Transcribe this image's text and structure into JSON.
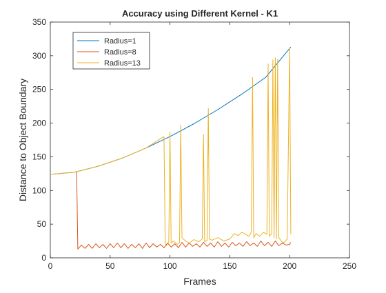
{
  "chart_data": {
    "type": "line",
    "title": "Accuracy using Different Kernel - K1",
    "xlabel": "Frames",
    "ylabel": "Distance to Object Boundary",
    "xlim": [
      0,
      250
    ],
    "ylim": [
      0,
      350
    ],
    "xticks": [
      0,
      50,
      100,
      150,
      200,
      250
    ],
    "yticks": [
      0,
      50,
      100,
      150,
      200,
      250,
      300,
      350
    ],
    "grid": false,
    "legend_position": "top-left",
    "series": [
      {
        "name": "Radius=1",
        "color": "#0072BD",
        "x": [
          1,
          20,
          40,
          60,
          80,
          100,
          120,
          140,
          160,
          180,
          201
        ],
        "y": [
          124,
          127,
          136,
          148,
          163,
          180,
          199,
          220,
          243,
          268,
          313
        ]
      },
      {
        "name": "Radius=8",
        "color": "#D95319",
        "x": [
          22,
          23,
          26,
          29,
          32,
          35,
          38,
          41,
          44,
          47,
          50,
          53,
          56,
          59,
          62,
          65,
          68,
          71,
          74,
          77,
          80,
          83,
          86,
          89,
          92,
          95,
          98,
          101,
          104,
          107,
          110,
          113,
          116,
          119,
          122,
          125,
          128,
          131,
          134,
          137,
          140,
          143,
          146,
          149,
          152,
          155,
          158,
          161,
          164,
          167,
          170,
          173,
          176,
          179,
          182,
          185,
          188,
          191,
          194,
          197,
          200,
          201
        ],
        "y": [
          128,
          13,
          19,
          14,
          20,
          14,
          21,
          15,
          20,
          14,
          21,
          15,
          22,
          15,
          21,
          14,
          20,
          15,
          21,
          14,
          22,
          15,
          21,
          16,
          20,
          15,
          22,
          16,
          21,
          15,
          23,
          16,
          22,
          17,
          21,
          16,
          23,
          17,
          22,
          16,
          24,
          17,
          22,
          16,
          23,
          18,
          22,
          17,
          24,
          18,
          22,
          17,
          25,
          18,
          23,
          17,
          25,
          18,
          22,
          19,
          20,
          23
        ]
      },
      {
        "name": "Radius=13",
        "color": "#EDB120",
        "x": [
          1,
          20,
          40,
          60,
          80,
          95,
          96,
          97,
          99,
          100,
          101,
          103,
          106,
          108,
          109,
          110,
          113,
          116,
          120,
          124,
          127,
          128,
          129,
          131,
          132,
          133,
          135,
          140,
          145,
          150,
          154,
          157,
          160,
          163,
          166,
          168,
          169,
          170,
          172,
          175,
          178,
          181,
          182,
          183,
          185,
          186,
          187,
          188,
          189,
          190,
          191,
          193,
          195,
          198,
          200,
          201
        ],
        "y": [
          124,
          127,
          136,
          148,
          163,
          180,
          20,
          18,
          24,
          187,
          22,
          25,
          20,
          23,
          197,
          30,
          25,
          22,
          27,
          24,
          28,
          183,
          24,
          26,
          222,
          28,
          26,
          30,
          25,
          28,
          36,
          33,
          38,
          35,
          32,
          38,
          268,
          30,
          36,
          32,
          38,
          35,
          288,
          32,
          36,
          294,
          30,
          297,
          28,
          295,
          30,
          25,
          22,
          28,
          312,
          35
        ]
      }
    ]
  }
}
